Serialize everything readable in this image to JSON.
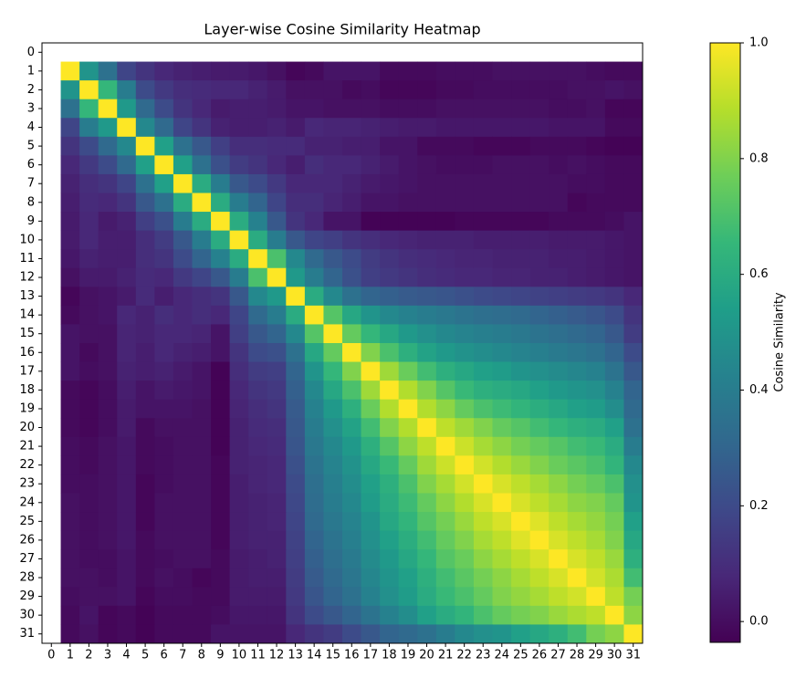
{
  "chart_data": {
    "type": "heatmap",
    "title": "Layer-wise Cosine Similarity Heatmap",
    "x": [
      0,
      1,
      2,
      3,
      4,
      5,
      6,
      7,
      8,
      9,
      10,
      11,
      12,
      13,
      14,
      15,
      16,
      17,
      18,
      19,
      20,
      21,
      22,
      23,
      24,
      25,
      26,
      27,
      28,
      29,
      30,
      31
    ],
    "y": [
      0,
      1,
      2,
      3,
      4,
      5,
      6,
      7,
      8,
      9,
      10,
      11,
      12,
      13,
      14,
      15,
      16,
      17,
      18,
      19,
      20,
      21,
      22,
      23,
      24,
      25,
      26,
      27,
      28,
      29,
      30,
      31
    ],
    "colormap": "viridis",
    "colorbar_label": "Cosine Similarity",
    "clim": [
      -0.036,
      1.0
    ],
    "cticks": [
      {
        "value": 0,
        "label": "0.0"
      },
      0.2,
      0.4,
      0.6,
      0.8,
      {
        "value": 1.0,
        "label": "1.0"
      }
    ],
    "z": [
      [
        null,
        null,
        null,
        null,
        null,
        null,
        null,
        null,
        null,
        null,
        null,
        null,
        null,
        null,
        null,
        null,
        null,
        null,
        null,
        null,
        null,
        null,
        null,
        null,
        null,
        null,
        null,
        null,
        null,
        null,
        null,
        null
      ],
      [
        null,
        1,
        0.5,
        0.35,
        0.18,
        0.12,
        0.08,
        0.06,
        0.05,
        0.04,
        0.04,
        0.03,
        0.01,
        -0.02,
        -0.01,
        0.02,
        0.02,
        0.02,
        -0.01,
        -0.01,
        -0.01,
        0,
        0,
        0,
        0.01,
        0.01,
        0.01,
        0.01,
        0.01,
        0,
        -0.01,
        -0.01
      ],
      [
        null,
        0.5,
        1,
        0.65,
        0.4,
        0.2,
        0.14,
        0.1,
        0.09,
        0.08,
        0.08,
        0.06,
        0.04,
        0.01,
        0.01,
        0.01,
        -0.01,
        0,
        -0.02,
        -0.02,
        -0.02,
        -0.01,
        -0.01,
        0,
        0,
        0,
        0,
        0,
        0.01,
        0.01,
        0.02,
        0.01
      ],
      [
        null,
        0.35,
        0.65,
        1,
        0.52,
        0.32,
        0.2,
        0.12,
        0.08,
        0.04,
        0.05,
        0.05,
        0.04,
        0.02,
        0.02,
        0.01,
        0.01,
        0.01,
        0,
        0,
        0,
        0.01,
        0.01,
        0.01,
        0.01,
        0.01,
        0.01,
        0,
        0,
        0.01,
        -0.02,
        -0.02
      ],
      [
        null,
        0.18,
        0.4,
        0.52,
        1,
        0.45,
        0.32,
        0.18,
        0.12,
        0.06,
        0.05,
        0.05,
        0.06,
        0.04,
        0.08,
        0.07,
        0.07,
        0.06,
        0.05,
        0.04,
        0.04,
        0.03,
        0.03,
        0.03,
        0.03,
        0.03,
        0.03,
        0.02,
        0.02,
        0.02,
        -0.01,
        -0.01
      ],
      [
        null,
        0.12,
        0.2,
        0.32,
        0.45,
        1,
        0.55,
        0.35,
        0.25,
        0.16,
        0.1,
        0.1,
        0.09,
        0.09,
        0.06,
        0.06,
        0.05,
        0.05,
        0.02,
        0.02,
        -0.01,
        -0.01,
        -0.01,
        -0.02,
        -0.02,
        -0.02,
        -0.01,
        -0.01,
        -0.01,
        -0.02,
        -0.03,
        -0.03
      ],
      [
        null,
        0.08,
        0.14,
        0.2,
        0.32,
        0.55,
        1,
        0.55,
        0.35,
        0.22,
        0.15,
        0.12,
        0.08,
        0.05,
        0.1,
        0.08,
        0.08,
        0.06,
        0.04,
        0.02,
        0.01,
        0,
        0,
        0,
        0.01,
        0.01,
        0.01,
        0,
        0.01,
        0,
        -0.01,
        -0.01
      ],
      [
        null,
        0.06,
        0.1,
        0.12,
        0.18,
        0.35,
        0.55,
        1,
        0.6,
        0.4,
        0.25,
        0.2,
        0.14,
        0.08,
        0.08,
        0.08,
        0.06,
        0.04,
        0.03,
        0.02,
        0.01,
        0.01,
        0.01,
        0.01,
        0.01,
        0.01,
        0.01,
        0.01,
        0,
        0,
        -0.01,
        -0.01
      ],
      [
        null,
        0.05,
        0.09,
        0.08,
        0.12,
        0.25,
        0.35,
        0.6,
        1,
        0.6,
        0.4,
        0.3,
        0.18,
        0.1,
        0.1,
        0.07,
        0.05,
        0.02,
        0.02,
        0.01,
        0.01,
        0.01,
        0.01,
        0.01,
        0.01,
        0.01,
        0.01,
        0.01,
        -0.02,
        -0.01,
        -0.01,
        -0.01
      ],
      [
        null,
        0.04,
        0.08,
        0.04,
        0.06,
        0.16,
        0.22,
        0.4,
        0.6,
        1,
        0.6,
        0.42,
        0.25,
        0.12,
        0.08,
        0.02,
        0.02,
        -0.03,
        -0.03,
        -0.03,
        -0.03,
        -0.03,
        -0.02,
        -0.02,
        -0.02,
        -0.02,
        -0.02,
        -0.01,
        -0.01,
        -0.01,
        0,
        0.02
      ],
      [
        null,
        0.04,
        0.08,
        0.05,
        0.05,
        0.1,
        0.15,
        0.25,
        0.4,
        0.6,
        1,
        0.6,
        0.4,
        0.25,
        0.18,
        0.16,
        0.12,
        0.1,
        0.08,
        0.07,
        0.06,
        0.06,
        0.06,
        0.05,
        0.05,
        0.05,
        0.05,
        0.04,
        0.04,
        0.04,
        0.03,
        0.02
      ],
      [
        null,
        0.03,
        0.06,
        0.05,
        0.05,
        0.1,
        0.12,
        0.2,
        0.3,
        0.42,
        0.6,
        1,
        0.7,
        0.45,
        0.32,
        0.25,
        0.2,
        0.15,
        0.12,
        0.1,
        0.09,
        0.08,
        0.07,
        0.07,
        0.06,
        0.06,
        0.06,
        0.05,
        0.05,
        0.04,
        0.03,
        0.02
      ],
      [
        null,
        0.01,
        0.04,
        0.04,
        0.06,
        0.09,
        0.08,
        0.14,
        0.18,
        0.25,
        0.4,
        0.7,
        1,
        0.52,
        0.4,
        0.3,
        0.22,
        0.16,
        0.14,
        0.12,
        0.1,
        0.09,
        0.08,
        0.08,
        0.07,
        0.07,
        0.06,
        0.06,
        0.05,
        0.04,
        0.03,
        0.02
      ],
      [
        null,
        -0.02,
        0.01,
        0.02,
        0.04,
        0.09,
        0.05,
        0.08,
        0.1,
        0.12,
        0.25,
        0.45,
        0.52,
        1,
        0.6,
        0.45,
        0.35,
        0.3,
        0.28,
        0.26,
        0.25,
        0.24,
        0.22,
        0.2,
        0.19,
        0.18,
        0.17,
        0.16,
        0.15,
        0.14,
        0.12,
        0.08
      ],
      [
        null,
        -0.01,
        0.01,
        0.02,
        0.08,
        0.06,
        0.1,
        0.08,
        0.1,
        0.08,
        0.18,
        0.32,
        0.4,
        0.6,
        1,
        0.72,
        0.58,
        0.5,
        0.45,
        0.42,
        0.4,
        0.38,
        0.36,
        0.34,
        0.33,
        0.32,
        0.3,
        0.28,
        0.26,
        0.24,
        0.2,
        0.12
      ],
      [
        null,
        0.02,
        0.01,
        0.01,
        0.07,
        0.06,
        0.08,
        0.08,
        0.07,
        0.02,
        0.16,
        0.25,
        0.3,
        0.45,
        0.72,
        1,
        0.75,
        0.65,
        0.58,
        0.52,
        0.48,
        0.45,
        0.43,
        0.41,
        0.4,
        0.38,
        0.36,
        0.34,
        0.32,
        0.3,
        0.25,
        0.15
      ],
      [
        null,
        0.02,
        -0.01,
        0.01,
        0.07,
        0.05,
        0.08,
        0.06,
        0.05,
        0.02,
        0.12,
        0.2,
        0.22,
        0.35,
        0.58,
        0.75,
        1,
        0.8,
        0.7,
        0.62,
        0.56,
        0.52,
        0.49,
        0.47,
        0.45,
        0.43,
        0.41,
        0.39,
        0.37,
        0.35,
        0.3,
        0.2
      ],
      [
        null,
        0.02,
        0,
        0.01,
        0.06,
        0.05,
        0.06,
        0.04,
        0.02,
        -0.03,
        0.1,
        0.15,
        0.16,
        0.3,
        0.5,
        0.65,
        0.8,
        1,
        0.85,
        0.76,
        0.68,
        0.62,
        0.58,
        0.55,
        0.53,
        0.5,
        0.48,
        0.46,
        0.44,
        0.42,
        0.36,
        0.25
      ],
      [
        null,
        -0.01,
        -0.02,
        0,
        0.05,
        0.02,
        0.04,
        0.03,
        0.02,
        -0.03,
        0.08,
        0.12,
        0.14,
        0.28,
        0.45,
        0.58,
        0.7,
        0.85,
        1,
        0.88,
        0.8,
        0.72,
        0.66,
        0.62,
        0.6,
        0.58,
        0.55,
        0.52,
        0.5,
        0.48,
        0.42,
        0.3
      ],
      [
        null,
        -0.01,
        -0.02,
        0,
        0.04,
        0.02,
        0.02,
        0.02,
        0.01,
        -0.03,
        0.07,
        0.1,
        0.12,
        0.26,
        0.42,
        0.52,
        0.62,
        0.76,
        0.88,
        1,
        0.88,
        0.82,
        0.75,
        0.7,
        0.67,
        0.64,
        0.61,
        0.58,
        0.55,
        0.53,
        0.47,
        0.32
      ],
      [
        null,
        -0.01,
        -0.02,
        0,
        0.04,
        -0.01,
        0.01,
        0.01,
        0.01,
        -0.03,
        0.06,
        0.09,
        0.1,
        0.25,
        0.4,
        0.48,
        0.56,
        0.68,
        0.8,
        0.88,
        1,
        0.9,
        0.85,
        0.8,
        0.75,
        0.72,
        0.68,
        0.65,
        0.62,
        0.6,
        0.55,
        0.35
      ],
      [
        null,
        0,
        -0.01,
        0.01,
        0.03,
        -0.01,
        0,
        0.01,
        0.01,
        -0.03,
        0.06,
        0.08,
        0.09,
        0.24,
        0.38,
        0.45,
        0.52,
        0.62,
        0.72,
        0.82,
        0.9,
        1,
        0.92,
        0.86,
        0.82,
        0.78,
        0.75,
        0.72,
        0.68,
        0.66,
        0.6,
        0.4
      ],
      [
        null,
        0,
        -0.01,
        0.01,
        0.03,
        -0.01,
        0,
        0.01,
        0.01,
        -0.02,
        0.06,
        0.07,
        0.08,
        0.22,
        0.36,
        0.43,
        0.49,
        0.58,
        0.66,
        0.75,
        0.85,
        0.92,
        1,
        0.93,
        0.88,
        0.84,
        0.8,
        0.76,
        0.73,
        0.7,
        0.64,
        0.45
      ],
      [
        null,
        0,
        0,
        0.01,
        0.03,
        -0.02,
        0,
        0.01,
        0.01,
        -0.02,
        0.05,
        0.07,
        0.08,
        0.2,
        0.34,
        0.41,
        0.47,
        0.55,
        0.62,
        0.7,
        0.8,
        0.86,
        0.93,
        1,
        0.94,
        0.9,
        0.86,
        0.82,
        0.78,
        0.75,
        0.7,
        0.48
      ],
      [
        null,
        0.01,
        0,
        0.01,
        0.03,
        -0.02,
        0.01,
        0.01,
        0.01,
        -0.02,
        0.05,
        0.06,
        0.07,
        0.19,
        0.33,
        0.4,
        0.45,
        0.53,
        0.6,
        0.67,
        0.75,
        0.82,
        0.88,
        0.94,
        1,
        0.94,
        0.9,
        0.86,
        0.82,
        0.8,
        0.75,
        0.5
      ],
      [
        null,
        0.01,
        0,
        0.01,
        0.03,
        -0.02,
        0.01,
        0.01,
        0.01,
        -0.02,
        0.05,
        0.06,
        0.07,
        0.18,
        0.32,
        0.38,
        0.43,
        0.5,
        0.58,
        0.64,
        0.72,
        0.78,
        0.84,
        0.9,
        0.94,
        1,
        0.95,
        0.9,
        0.86,
        0.83,
        0.78,
        0.55
      ],
      [
        null,
        0.01,
        0,
        0.01,
        0.03,
        -0.01,
        0.01,
        0.01,
        0.01,
        -0.02,
        0.05,
        0.06,
        0.06,
        0.17,
        0.3,
        0.36,
        0.41,
        0.48,
        0.55,
        0.61,
        0.68,
        0.75,
        0.8,
        0.86,
        0.9,
        0.95,
        1,
        0.94,
        0.9,
        0.86,
        0.8,
        0.58
      ],
      [
        null,
        0.01,
        0,
        0,
        0.02,
        -0.01,
        0,
        0.01,
        0.01,
        -0.01,
        0.04,
        0.05,
        0.06,
        0.16,
        0.28,
        0.34,
        0.39,
        0.46,
        0.52,
        0.58,
        0.65,
        0.72,
        0.76,
        0.82,
        0.86,
        0.9,
        0.94,
        1,
        0.94,
        0.9,
        0.84,
        0.62
      ],
      [
        null,
        0.01,
        0.01,
        0,
        0.02,
        -0.01,
        0.01,
        0,
        -0.02,
        -0.01,
        0.04,
        0.05,
        0.05,
        0.15,
        0.26,
        0.32,
        0.37,
        0.44,
        0.5,
        0.55,
        0.62,
        0.68,
        0.73,
        0.78,
        0.82,
        0.86,
        0.9,
        0.94,
        1,
        0.93,
        0.87,
        0.68
      ],
      [
        null,
        0,
        0.01,
        0.01,
        0.02,
        -0.02,
        0,
        0,
        -0.01,
        -0.01,
        0.04,
        0.04,
        0.04,
        0.14,
        0.24,
        0.3,
        0.35,
        0.42,
        0.48,
        0.53,
        0.6,
        0.66,
        0.7,
        0.75,
        0.8,
        0.83,
        0.86,
        0.9,
        0.93,
        1,
        0.9,
        0.78
      ],
      [
        null,
        -0.01,
        0.02,
        -0.02,
        -0.01,
        -0.03,
        -0.01,
        -0.01,
        -0.01,
        0,
        0.03,
        0.03,
        0.03,
        0.12,
        0.2,
        0.25,
        0.3,
        0.36,
        0.42,
        0.47,
        0.55,
        0.6,
        0.64,
        0.7,
        0.75,
        0.78,
        0.8,
        0.84,
        0.87,
        0.9,
        1,
        0.82
      ],
      [
        null,
        -0.01,
        0.01,
        -0.02,
        -0.01,
        -0.03,
        -0.01,
        -0.01,
        -0.01,
        0.02,
        0.02,
        0.02,
        0.02,
        0.08,
        0.12,
        0.15,
        0.2,
        0.25,
        0.3,
        0.32,
        0.35,
        0.4,
        0.45,
        0.48,
        0.5,
        0.55,
        0.58,
        0.62,
        0.68,
        0.78,
        0.82,
        1
      ]
    ]
  }
}
